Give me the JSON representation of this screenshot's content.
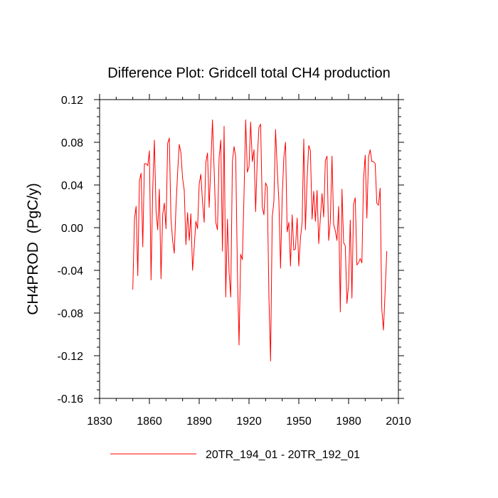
{
  "chart_data": {
    "type": "line",
    "title": "Difference Plot: Gridcell total CH4 production",
    "xlabel": "",
    "ylabel": "CH4PROD  (PgC/y)",
    "xlim": [
      1830,
      2010
    ],
    "ylim": [
      -0.16,
      0.12
    ],
    "xticks": [
      1830,
      1860,
      1890,
      1920,
      1950,
      1980,
      2010
    ],
    "xtick_labels": [
      "1830",
      "1860",
      "1890",
      "1920",
      "1950",
      "1980",
      "2010"
    ],
    "yticks": [
      -0.16,
      -0.12,
      -0.08,
      -0.04,
      0.0,
      0.04,
      0.08,
      0.12
    ],
    "ytick_labels": [
      "-0.16",
      "-0.12",
      "-0.08",
      "-0.04",
      "0.00",
      "0.04",
      "0.08",
      "0.12"
    ],
    "legend": {
      "position": "bottom-center"
    },
    "series": [
      {
        "name": "20TR_194_01 - 20TR_192_01",
        "color": "#ff0000",
        "x_start": 1850,
        "x_step": 1,
        "values": [
          -0.058,
          0.008,
          0.02,
          -0.045,
          0.044,
          0.051,
          -0.018,
          0.06,
          0.06,
          0.058,
          0.072,
          -0.049,
          0.036,
          0.082,
          0.016,
          -0.002,
          0.036,
          -0.048,
          0.012,
          0.023,
          -0.001,
          0.079,
          0.084,
          0.008,
          -0.012,
          -0.024,
          0.019,
          0.052,
          0.078,
          0.07,
          0.046,
          0.035,
          -0.016,
          0.014,
          -0.012,
          0.013,
          -0.04,
          -0.018,
          0.006,
          -0.001,
          0.041,
          0.05,
          0.024,
          0.005,
          0.061,
          0.07,
          0.019,
          0.058,
          0.101,
          0.054,
          0.005,
          -0.002,
          0.066,
          0.082,
          -0.022,
          0.095,
          -0.065,
          0.008,
          -0.042,
          -0.065,
          0.062,
          0.076,
          0.066,
          -0.04,
          -0.11,
          -0.025,
          -0.03,
          0.031,
          0.101,
          0.052,
          0.057,
          0.099,
          0.062,
          0.073,
          0.015,
          0.065,
          0.094,
          0.097,
          0.019,
          0.012,
          0.042,
          0.038,
          -0.065,
          -0.125,
          0.01,
          0.025,
          0.092,
          0.055,
          0.025,
          -0.038,
          0.029,
          0.066,
          0.08,
          -0.004,
          0.005,
          -0.036,
          0.012,
          -0.021,
          -0.02,
          0.009,
          -0.036,
          -0.01,
          0.005,
          0.083,
          -0.002,
          0.046,
          0.077,
          0.072,
          0.008,
          0.034,
          0.006,
          0.035,
          -0.015,
          0.009,
          0.032,
          0.01,
          0.063,
          0.067,
          -0.012,
          0.006,
          0.067,
          0.003,
          -0.003,
          -0.012,
          0.02,
          -0.079,
          0.036,
          -0.014,
          -0.017,
          -0.071,
          -0.053,
          0.007,
          -0.066,
          0.022,
          0.028,
          -0.035,
          -0.033,
          -0.029,
          -0.033,
          0.045,
          0.068,
          0.009,
          0.066,
          0.073,
          0.062,
          0.062,
          0.06,
          0.023,
          0.021,
          0.037,
          -0.076,
          -0.096,
          -0.06,
          -0.022
        ]
      }
    ]
  }
}
